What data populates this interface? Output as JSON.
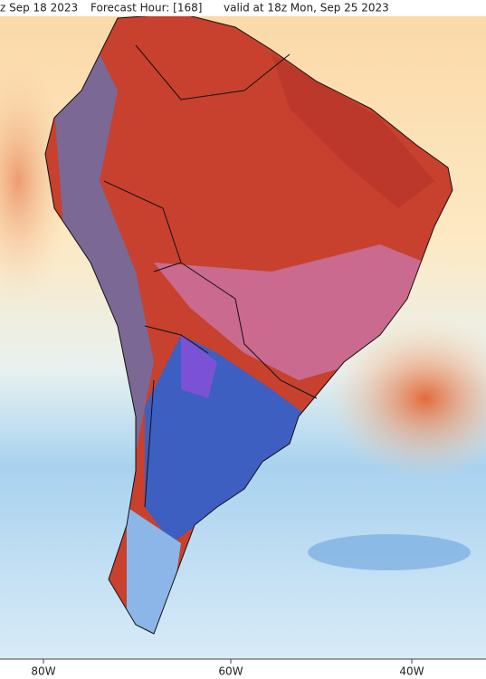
{
  "header": {
    "run": "z Sep 18 2023",
    "forecast_hour": "Forecast Hour: [168]",
    "valid": "valid at 18z Mon, Sep 25 2023"
  },
  "longitude_labels": [
    "80W",
    "60W",
    "40W"
  ]
}
